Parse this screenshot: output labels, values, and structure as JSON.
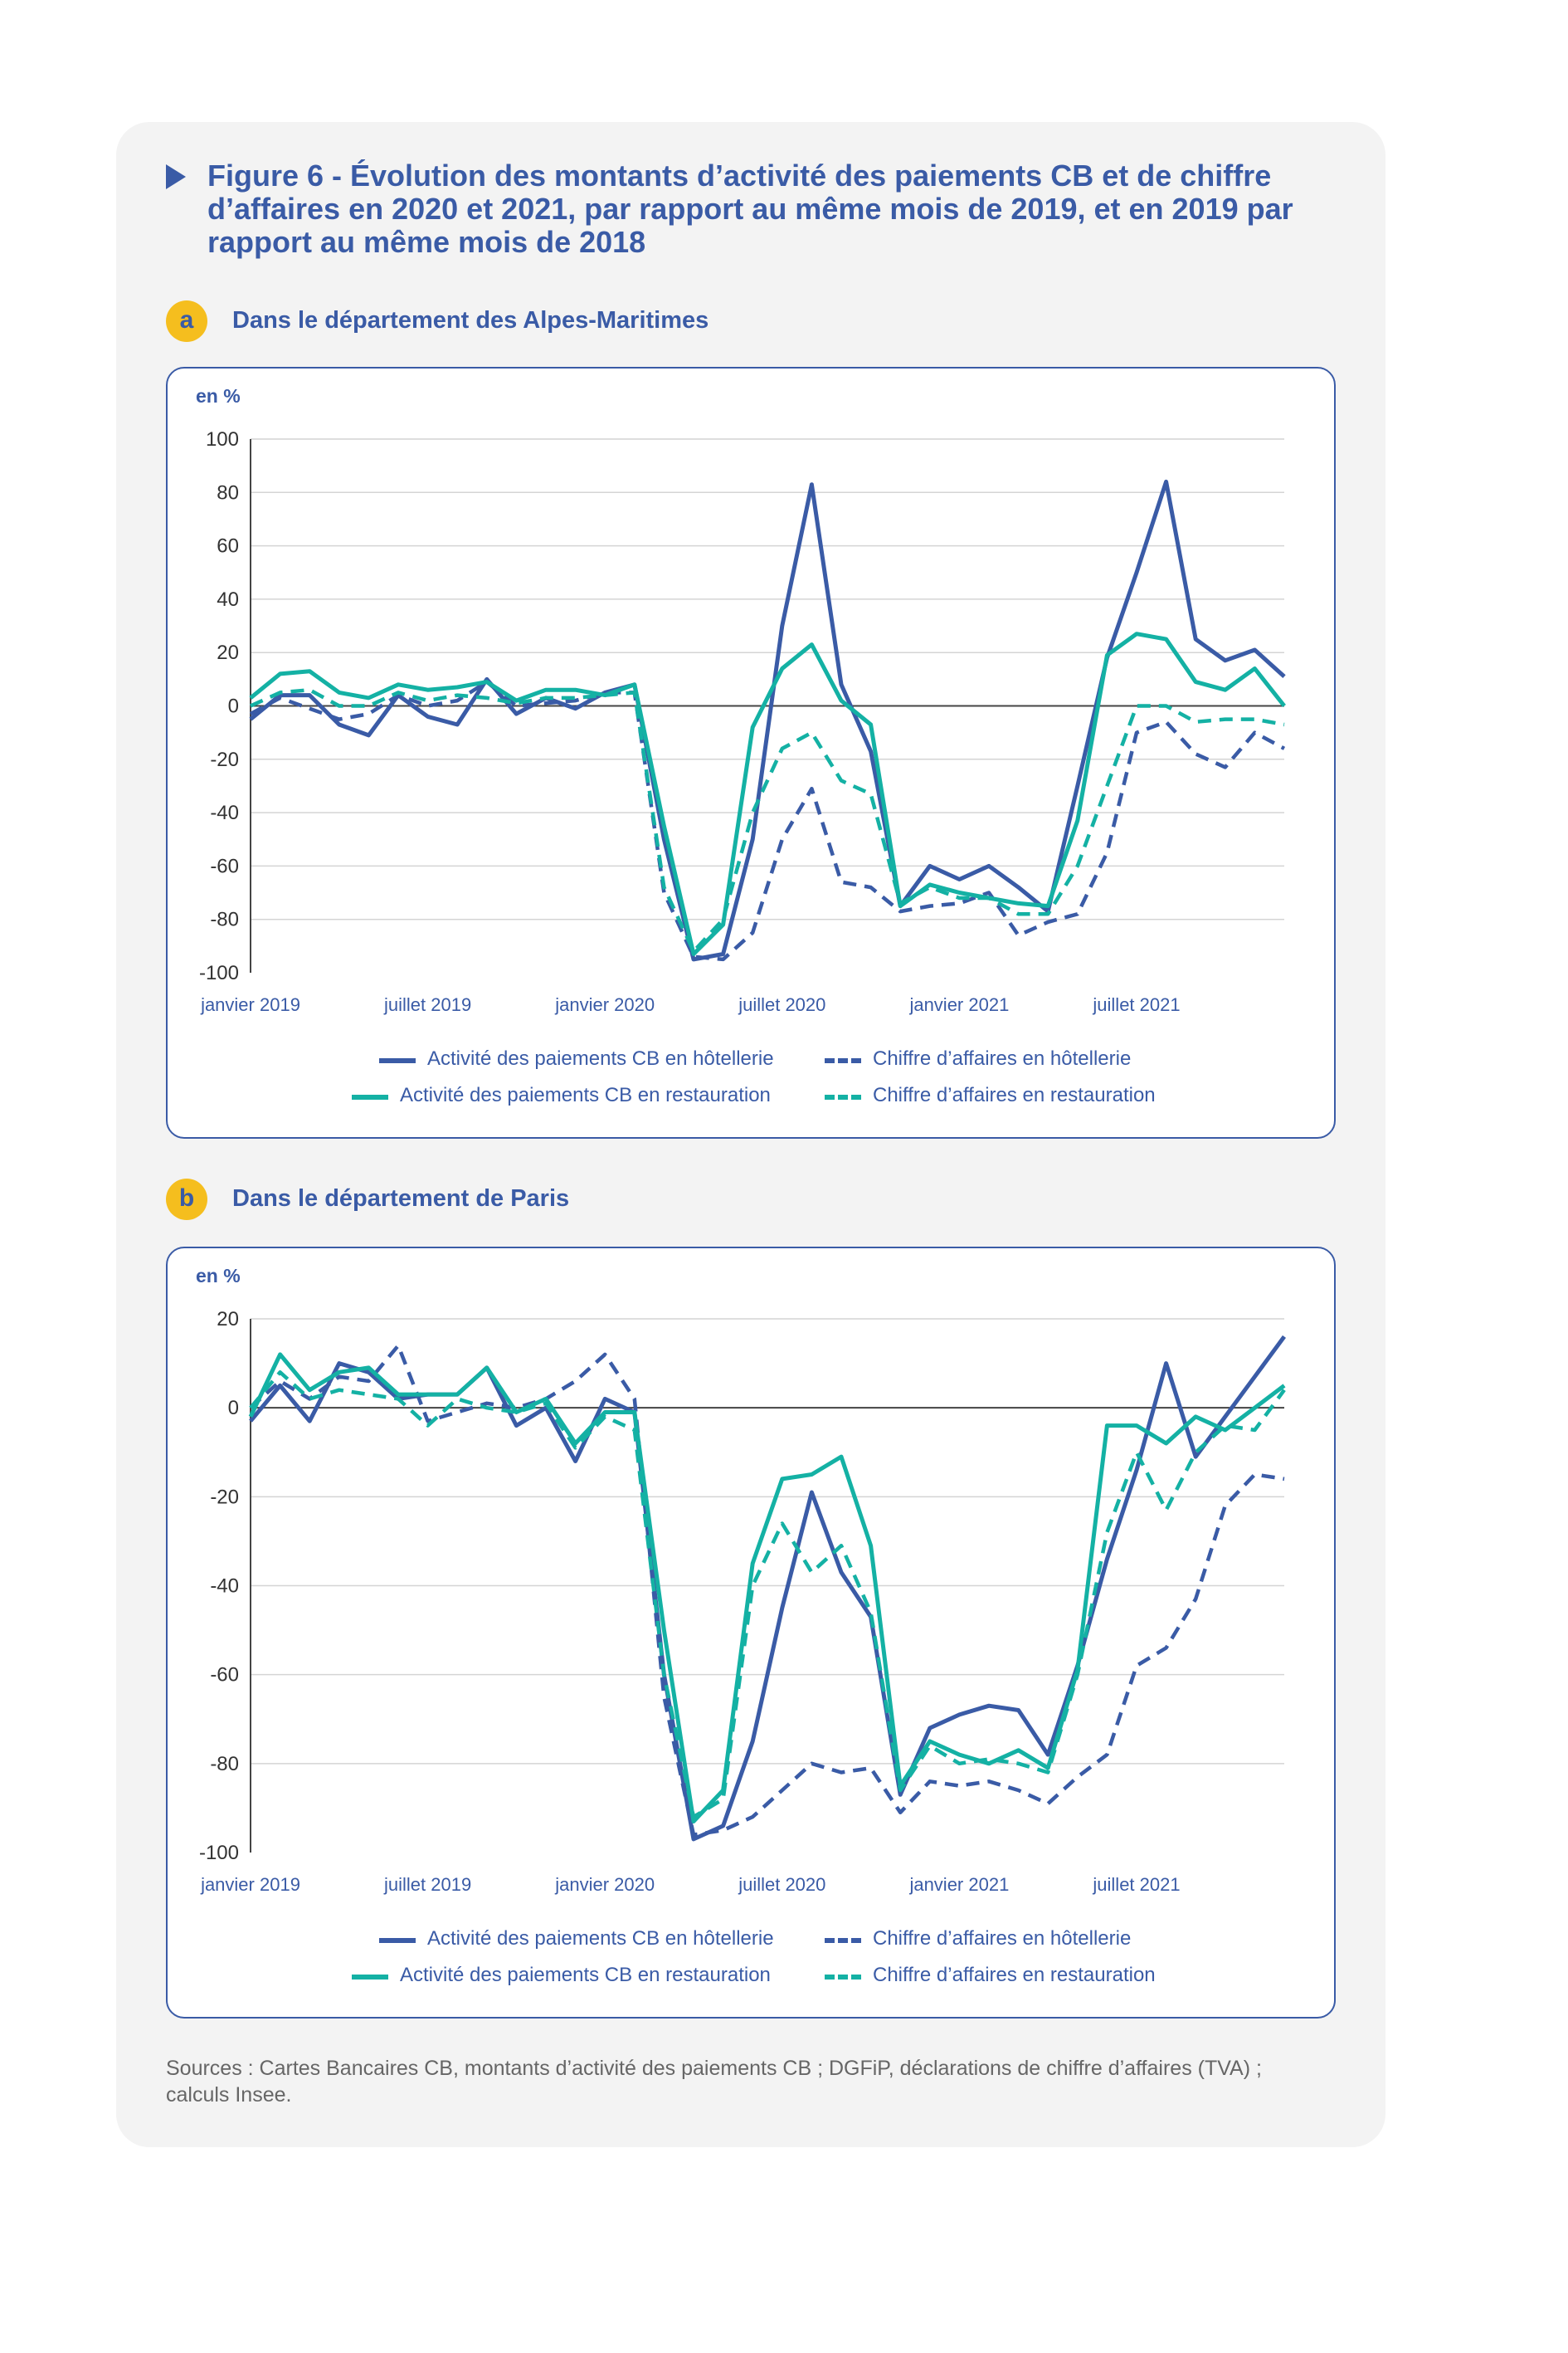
{
  "figure": {
    "title": "Figure 6 - Évolution des montants d’activité des paiements CB et de chiffre d’affaires en 2020 et 2021, par rapport au même mois de 2019, et en 2019 par rapport au même mois de 2018",
    "sources": "Sources : Cartes Bancaires CB, montants d’activité des paiements CB ; DGFiP, déclarations de chiffre d’affaires (TVA) ; calculs Insee."
  },
  "colors": {
    "hotel": "#3a5ba6",
    "resto": "#14b1a4",
    "title": "#3a5ba6",
    "badge": "#f5be1e"
  },
  "chart_data": [
    {
      "type": "line",
      "badge": "a",
      "subtitle": "Dans le département des Alpes-Maritimes",
      "ylabel": "en %",
      "ylim": [
        -100,
        100
      ],
      "yticks": [
        100,
        80,
        60,
        40,
        20,
        0,
        -20,
        -40,
        -60,
        -80,
        -100
      ],
      "xtick_labels": [
        "janvier 2019",
        "juillet 2019",
        "janvier 2020",
        "juillet 2020",
        "janvier 2021",
        "juillet 2021"
      ],
      "xtick_months": [
        0,
        6,
        12,
        18,
        24,
        30
      ],
      "x": [
        "2019-01",
        "2019-02",
        "2019-03",
        "2019-04",
        "2019-05",
        "2019-06",
        "2019-07",
        "2019-08",
        "2019-09",
        "2019-10",
        "2019-11",
        "2019-12",
        "2020-01",
        "2020-02",
        "2020-03",
        "2020-04",
        "2020-05",
        "2020-06",
        "2020-07",
        "2020-08",
        "2020-09",
        "2020-10",
        "2020-11",
        "2020-12",
        "2021-01",
        "2021-02",
        "2021-03",
        "2021-04",
        "2021-05",
        "2021-06",
        "2021-07",
        "2021-08",
        "2021-09",
        "2021-10",
        "2021-11",
        "2021-12"
      ],
      "series": [
        {
          "name": "Activité des paiements CB en hôtellerie",
          "style": "solid",
          "color": "#3a5ba6",
          "values": [
            -5,
            4,
            4,
            -7,
            -11,
            4,
            -4,
            -7,
            10,
            -3,
            3,
            -1,
            5,
            8,
            -50,
            -95,
            -93,
            -50,
            30,
            83,
            8,
            -17,
            -75,
            -60,
            -65,
            -60,
            -68,
            -77,
            -30,
            18,
            50,
            84,
            25,
            17,
            21,
            11
          ]
        },
        {
          "name": "Chiffre d’affaires en hôtellerie",
          "style": "dashed",
          "color": "#3a5ba6",
          "values": [
            -3,
            3,
            -1,
            -5,
            -3,
            4,
            0,
            2,
            9,
            0,
            1,
            2,
            5,
            5,
            -70,
            -94,
            -95,
            -85,
            -50,
            -31,
            -66,
            -68,
            -77,
            -75,
            -74,
            -70,
            -86,
            -81,
            -78,
            -55,
            -10,
            -6,
            -18,
            -23,
            -10,
            -16
          ]
        },
        {
          "name": "Activité des paiements CB en restauration",
          "style": "solid",
          "color": "#14b1a4",
          "values": [
            3,
            12,
            13,
            5,
            3,
            8,
            6,
            7,
            9,
            2,
            6,
            6,
            4,
            8,
            -45,
            -93,
            -82,
            -8,
            14,
            23,
            2,
            -7,
            -75,
            -67,
            -70,
            -72,
            -74,
            -75,
            -43,
            19,
            27,
            25,
            9,
            6,
            14,
            0
          ]
        },
        {
          "name": "Chiffre d’affaires en restauration",
          "style": "dashed",
          "color": "#14b1a4",
          "values": [
            0,
            5,
            6,
            0,
            0,
            5,
            2,
            4,
            3,
            1,
            3,
            3,
            4,
            5,
            -68,
            -92,
            -80,
            -40,
            -16,
            -10,
            -28,
            -33,
            -74,
            -68,
            -72,
            -72,
            -78,
            -78,
            -60,
            -30,
            0,
            0,
            -6,
            -5,
            -5,
            -7
          ]
        }
      ]
    },
    {
      "type": "line",
      "badge": "b",
      "subtitle": "Dans le département de Paris",
      "ylabel": "en %",
      "ylim": [
        -100,
        20
      ],
      "yticks": [
        20,
        0,
        -20,
        -40,
        -60,
        -80,
        -100
      ],
      "xtick_labels": [
        "janvier 2019",
        "juillet 2019",
        "janvier 2020",
        "juillet 2020",
        "janvier 2021",
        "juillet 2021"
      ],
      "xtick_months": [
        0,
        6,
        12,
        18,
        24,
        30
      ],
      "x": [
        "2019-01",
        "2019-02",
        "2019-03",
        "2019-04",
        "2019-05",
        "2019-06",
        "2019-07",
        "2019-08",
        "2019-09",
        "2019-10",
        "2019-11",
        "2019-12",
        "2020-01",
        "2020-02",
        "2020-03",
        "2020-04",
        "2020-05",
        "2020-06",
        "2020-07",
        "2020-08",
        "2020-09",
        "2020-10",
        "2020-11",
        "2020-12",
        "2021-01",
        "2021-02",
        "2021-03",
        "2021-04",
        "2021-05",
        "2021-06",
        "2021-07",
        "2021-08",
        "2021-09",
        "2021-10",
        "2021-11",
        "2021-12"
      ],
      "series": [
        {
          "name": "Activité des paiements CB en hôtellerie",
          "style": "solid",
          "color": "#3a5ba6",
          "values": [
            -3,
            5,
            -3,
            10,
            8,
            2,
            3,
            3,
            9,
            -4,
            0,
            -12,
            2,
            -1,
            -60,
            -97,
            -94,
            -75,
            -45,
            -19,
            -37,
            -47,
            -87,
            -72,
            -69,
            -67,
            -68,
            -78,
            -58,
            -34,
            -14,
            10,
            -11,
            -2,
            7,
            16
          ]
        },
        {
          "name": "Chiffre d’affaires en hôtellerie",
          "style": "dashed",
          "color": "#3a5ba6",
          "values": [
            0,
            6,
            2,
            7,
            6,
            14,
            -3,
            -1,
            1,
            0,
            2,
            6,
            12,
            2,
            -65,
            -96,
            -95,
            -92,
            -86,
            -80,
            -82,
            -81,
            -91,
            -84,
            -85,
            -84,
            -86,
            -89,
            -83,
            -78,
            -58,
            -54,
            -43,
            -22,
            -15,
            -16
          ]
        },
        {
          "name": "Activité des paiements CB en restauration",
          "style": "solid",
          "color": "#14b1a4",
          "values": [
            -2,
            12,
            4,
            8,
            9,
            3,
            3,
            3,
            9,
            -1,
            2,
            -8,
            -1,
            -1,
            -50,
            -93,
            -86,
            -35,
            -16,
            -15,
            -11,
            -31,
            -85,
            -75,
            -78,
            -80,
            -77,
            -81,
            -59,
            -4,
            -4,
            -8,
            -2,
            -5,
            0,
            5
          ]
        },
        {
          "name": "Chiffre d’affaires en restauration",
          "style": "dashed",
          "color": "#14b1a4",
          "values": [
            0,
            8,
            2,
            4,
            3,
            2,
            -4,
            2,
            0,
            -1,
            1,
            -9,
            -2,
            -5,
            -60,
            -92,
            -88,
            -40,
            -26,
            -37,
            -31,
            -46,
            -86,
            -76,
            -80,
            -79,
            -80,
            -82,
            -60,
            -28,
            -10,
            -23,
            -10,
            -4,
            -5,
            4
          ]
        }
      ]
    }
  ]
}
